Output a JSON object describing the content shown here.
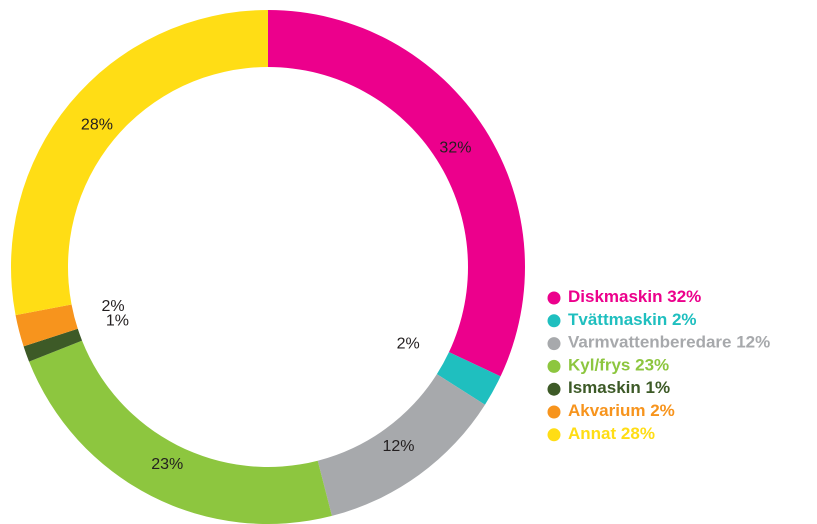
{
  "chart_data": {
    "type": "pie",
    "categories": [
      "Diskmaskin",
      "Tvättmaskin",
      "Varmvattenberedare",
      "Kyl/frys",
      "Ismaskin",
      "Akvarium",
      "Annat"
    ],
    "values": [
      32,
      2,
      12,
      23,
      1,
      2,
      28
    ],
    "value_labels": [
      "32%",
      "2%",
      "12%",
      "23%",
      "1%",
      "2%",
      "28%"
    ],
    "colors": [
      "#ec008c",
      "#1fbfbf",
      "#a7a9ac",
      "#8dc63f",
      "#3d5a27",
      "#f7941d",
      "#ffdd15"
    ],
    "legend": "right"
  }
}
